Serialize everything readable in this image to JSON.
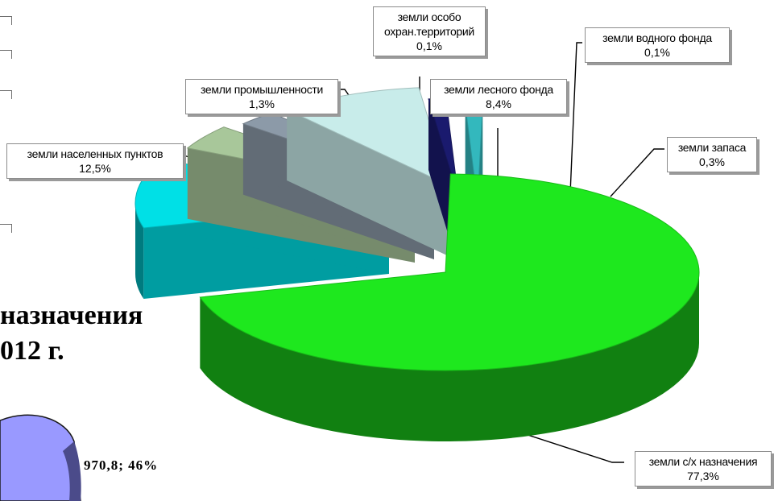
{
  "chart_data": {
    "type": "pie",
    "style": "3d-exploded",
    "title": "",
    "slices": [
      {
        "label": "земли с/х назначения",
        "value": 77.3,
        "display": "77,3%",
        "color": "#1ee81e",
        "label_lines": [
          "земли с/х назначения"
        ]
      },
      {
        "label": "земли населенных пунктов",
        "value": 12.5,
        "display": "12,5%",
        "color": "#00e0e6",
        "label_lines": [
          "земли населенных пунктов"
        ]
      },
      {
        "label": "земли промышленности",
        "value": 1.3,
        "display": "1,3%",
        "color": "#a8c79a",
        "label_lines": [
          "земли промышленности"
        ]
      },
      {
        "label": "земли особо охран.территорий",
        "value": 0.1,
        "display": "0,1%",
        "color": "#8c9aa8",
        "label_lines": [
          "земли особо",
          "охран.территорий"
        ]
      },
      {
        "label": "земли лесного фонда",
        "value": 8.4,
        "display": "8,4%",
        "color": "#c8ecea",
        "label_lines": [
          "земли лесного фонда"
        ]
      },
      {
        "label": "земли водного фонда",
        "value": 0.1,
        "display": "0,1%",
        "color": "#1a1a6e",
        "label_lines": [
          "земли водного фонда"
        ]
      },
      {
        "label": "земли запаса",
        "value": 0.3,
        "display": "0,3%",
        "color": "#33b8bd",
        "label_lines": [
          "земли запаса"
        ]
      }
    ]
  },
  "background_slide": {
    "title_lines": [
      "назначения",
      "012 г."
    ],
    "fragment_pie_label": "970,8; 46%",
    "fragment_pie_color": "#9999ff"
  }
}
